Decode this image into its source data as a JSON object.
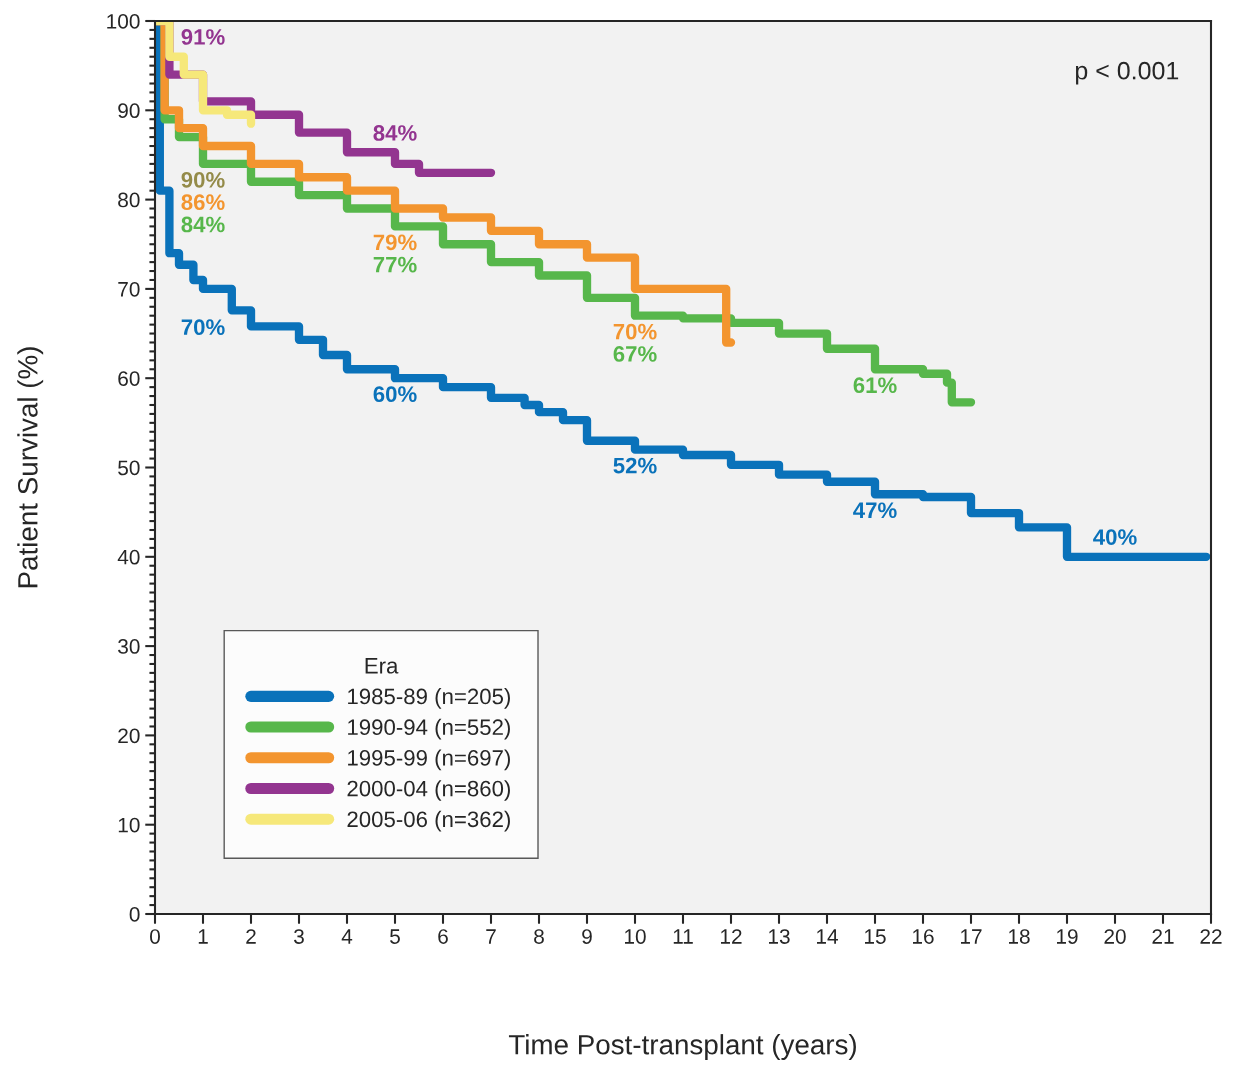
{
  "chart_data": {
    "type": "step",
    "xlabel": "Time Post-transplant (years)",
    "ylabel": "Patient Survival (%)",
    "legend_title": "Era",
    "legend": "bottom left",
    "grid": false,
    "xlim": [
      0,
      22
    ],
    "xticks": [
      0,
      1,
      2,
      3,
      4,
      5,
      6,
      7,
      8,
      9,
      10,
      11,
      12,
      13,
      14,
      15,
      16,
      17,
      18,
      19,
      20,
      21,
      22
    ],
    "ylim": [
      0,
      100
    ],
    "yticks": [
      0,
      10,
      20,
      30,
      40,
      50,
      60,
      70,
      80,
      90,
      100
    ],
    "series": [
      {
        "name": "1985-89 (n=205)",
        "color": "#0a72ba",
        "x": [
          0,
          0.1,
          0.3,
          0.5,
          0.8,
          1.0,
          1.6,
          2.0,
          3.0,
          3.5,
          4.0,
          5.0,
          6.0,
          7.0,
          7.7,
          8.0,
          8.5,
          9.0,
          10.0,
          11.0,
          12.0,
          13.0,
          14.0,
          15.0,
          16.0,
          17.0,
          18.0,
          19.0,
          20.0,
          21.9
        ],
        "values": [
          100,
          81,
          74,
          72.7,
          71,
          70,
          67.6,
          65.8,
          64.3,
          62.6,
          61,
          60,
          59,
          57.8,
          57,
          56.2,
          55.3,
          53,
          52,
          51.4,
          50.3,
          49.2,
          48.4,
          47,
          46.7,
          44.9,
          43.3,
          40,
          40,
          40
        ]
      },
      {
        "name": "1990-94 (n=552)",
        "color": "#57b74b",
        "x": [
          0,
          0.2,
          0.5,
          1,
          2,
          3,
          4,
          5,
          6,
          7,
          8,
          9,
          10,
          11,
          12,
          13,
          14,
          15,
          16,
          16.5,
          16.6,
          17
        ],
        "values": [
          100,
          89,
          87,
          84,
          82,
          80.5,
          79,
          77,
          75,
          73,
          71.5,
          69,
          67,
          66.7,
          66.2,
          65,
          63.3,
          61,
          60.5,
          59.5,
          57.3,
          57.3
        ]
      },
      {
        "name": "1995-99 (n=697)",
        "color": "#f3952f",
        "x": [
          0,
          0.2,
          0.5,
          1,
          2,
          3,
          4,
          5,
          6,
          7,
          8,
          9,
          10,
          11.9,
          12
        ],
        "values": [
          100,
          90,
          88,
          86,
          84,
          82.5,
          81,
          79,
          78,
          76.5,
          75,
          73.5,
          70,
          64,
          64
        ]
      },
      {
        "name": "2000-04 (n=860)",
        "color": "#933590",
        "x": [
          0,
          0.3,
          1,
          2,
          3,
          4,
          5,
          5.5,
          7
        ],
        "values": [
          100,
          94,
          91,
          89.5,
          87.5,
          85.3,
          84,
          83,
          83
        ]
      },
      {
        "name": "2005-06 (n=362)",
        "color": "#f6e87a",
        "x": [
          0,
          0.3,
          0.6,
          1,
          1.5,
          2
        ],
        "values": [
          100,
          96,
          94,
          90,
          89.5,
          88.5
        ]
      }
    ],
    "annotations": [
      {
        "text": "91%",
        "x": 1,
        "y": 91
      },
      {
        "text": "90%",
        "x": 1,
        "y": 90
      },
      {
        "text": "86%",
        "x": 1,
        "y": 86
      },
      {
        "text": "84%",
        "x": 1,
        "y": 84
      },
      {
        "text": "70%",
        "x": 1,
        "y": 70
      },
      {
        "text": "84%",
        "x": 5,
        "y": 84
      },
      {
        "text": "79%",
        "x": 5,
        "y": 79
      },
      {
        "text": "77%",
        "x": 5,
        "y": 77
      },
      {
        "text": "60%",
        "x": 5,
        "y": 60
      },
      {
        "text": "70%",
        "x": 10,
        "y": 70
      },
      {
        "text": "67%",
        "x": 10,
        "y": 67
      },
      {
        "text": "52%",
        "x": 10,
        "y": 52
      },
      {
        "text": "61%",
        "x": 15,
        "y": 61
      },
      {
        "text": "47%",
        "x": 15,
        "y": 47
      },
      {
        "text": "40%",
        "x": 20,
        "y": 40
      },
      "p < 0.001"
    ]
  }
}
